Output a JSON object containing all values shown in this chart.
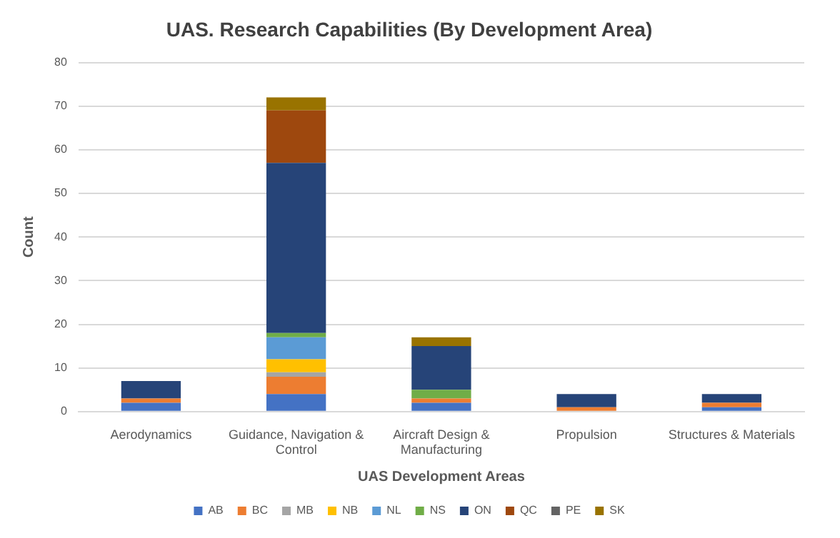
{
  "chart_data": {
    "type": "bar",
    "stacked": true,
    "title": "UAS. Research Capabilities (By Development Area)",
    "xlabel": "UAS Development Areas",
    "ylabel": "Count",
    "categories": [
      "Aerodynamics",
      "Guidance, Navigation & Control",
      "Aircraft Design & Manufacturing",
      "Propulsion",
      "Structures & Materials"
    ],
    "ylim": [
      0,
      80
    ],
    "yticks": [
      0,
      10,
      20,
      30,
      40,
      50,
      60,
      70,
      80
    ],
    "grid": "y",
    "legend": "bottom",
    "series": [
      {
        "name": "AB",
        "color": "#4472c4",
        "values": [
          2,
          4,
          2,
          0,
          1
        ]
      },
      {
        "name": "BC",
        "color": "#ed7d31",
        "values": [
          1,
          4,
          1,
          1,
          1
        ]
      },
      {
        "name": "MB",
        "color": "#a5a5a5",
        "values": [
          0,
          1,
          0,
          0,
          0
        ]
      },
      {
        "name": "NB",
        "color": "#ffc000",
        "values": [
          0,
          3,
          0,
          0,
          0
        ]
      },
      {
        "name": "NL",
        "color": "#5b9bd5",
        "values": [
          0,
          5,
          0,
          0,
          0
        ]
      },
      {
        "name": "NS",
        "color": "#70ad47",
        "values": [
          0,
          1,
          2,
          0,
          0
        ]
      },
      {
        "name": "ON",
        "color": "#264478",
        "values": [
          4,
          39,
          10,
          3,
          2
        ]
      },
      {
        "name": "QC",
        "color": "#9e480e",
        "values": [
          0,
          12,
          0,
          0,
          0
        ]
      },
      {
        "name": "PE",
        "color": "#636363",
        "values": [
          0,
          0,
          0,
          0,
          0
        ]
      },
      {
        "name": "SK",
        "color": "#997300",
        "values": [
          0,
          3,
          2,
          0,
          0
        ]
      }
    ]
  }
}
